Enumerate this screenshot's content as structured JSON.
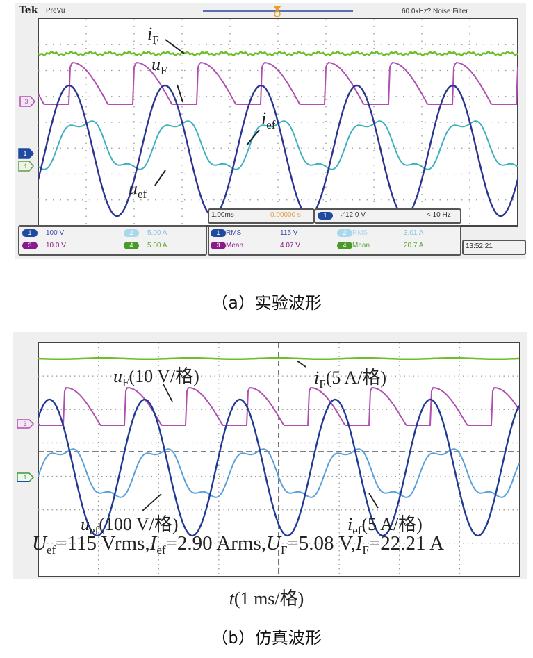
{
  "figure": {
    "panel_a": {
      "header": {
        "logo": "Tek",
        "mode": "PreVu",
        "filter": "60.0kHz? Noise Filter"
      },
      "trace_labels": {
        "iF": {
          "sym": "i",
          "sub": "F"
        },
        "uF": {
          "sym": "u",
          "sub": "F"
        },
        "ief": {
          "sym": "i",
          "sub": "ef"
        },
        "uef": {
          "sym": "u",
          "sub": "ef"
        }
      },
      "channel_markers": {
        "ch3": "3",
        "ch1": "1",
        "ch4": "4"
      },
      "channel_settings": [
        {
          "ch": "1",
          "scale": "100 V",
          "color": "#1f3a93"
        },
        {
          "ch": "3",
          "scale": "10.0 V",
          "color": "#8b1a8b"
        },
        {
          "ch": "2",
          "scale": "5.00 A",
          "color": "#9fd0e8"
        },
        {
          "ch": "4",
          "scale": "5.00 A",
          "color": "#4a9a2a"
        }
      ],
      "timebase": {
        "scale": "1.00ms",
        "position": "0.00000 s"
      },
      "trigger": {
        "ch": "1",
        "level": "12.0 V",
        "freq": "< 10 Hz"
      },
      "measurements": [
        {
          "ch": "1",
          "type": "RMS",
          "value": "115 V",
          "color": "#1f3a93"
        },
        {
          "ch": "3",
          "type": "Mean",
          "value": "4.07 V",
          "color": "#8b1a8b"
        },
        {
          "ch": "2",
          "type": "RMS",
          "value": "3.01 A",
          "color": "#7fc4e0"
        },
        {
          "ch": "4",
          "type": "Mean",
          "value": "20.7 A",
          "color": "#5aa832"
        }
      ],
      "clock": "13:52:21",
      "caption": "（a）实验波形"
    },
    "panel_b": {
      "trace_labels": {
        "uF": {
          "sym": "u",
          "sub": "F",
          "scale": "(10 V/格)"
        },
        "iF": {
          "sym": "i",
          "sub": "F",
          "scale": "(5 A/格)"
        },
        "uef": {
          "sym": "u",
          "sub": "ef",
          "scale": "(100 V/格)"
        },
        "ief": {
          "sym": "i",
          "sub": "ef",
          "scale": "(5 A/格)"
        }
      },
      "channel_markers": {
        "ch3": "3",
        "ch1": "1"
      },
      "summary": {
        "Uef": "=115 Vrms,",
        "Ief": "=2.90 Arms,",
        "UF": "=5.08 V,",
        "IF": "=22.21 A"
      },
      "xlabel": "t(1 ms/格)",
      "xlabel_sym": "t",
      "xlabel_rest": "(1 ms/格)",
      "caption": "（b）仿真波形"
    }
  },
  "chart_data": [
    {
      "type": "line",
      "title": "（a）实验波形",
      "xlabel": "time (1.00 ms/div)",
      "x_divisions": 10,
      "y_divisions": 8,
      "grid": true,
      "series": [
        {
          "name": "iF",
          "channel": 4,
          "scale": "5.00 A/div",
          "shape": "flat DC with ripple",
          "mean": "20.7 A",
          "color": "#6cbf2a"
        },
        {
          "name": "uF",
          "channel": 3,
          "scale": "10.0 V/div",
          "shape": "rectified pulse train, ~1 pulse per 0.67 div",
          "mean": "4.07 V",
          "color": "#b04fb0"
        },
        {
          "name": "ief",
          "channel": 2,
          "scale": "5.00 A/div",
          "shape": "distorted sine lagging uef",
          "rms": "3.01 A",
          "color": "#3aa8b8"
        },
        {
          "name": "uef",
          "channel": 1,
          "scale": "100 V/div",
          "shape": "sine, period ~2 div (≈500 Hz)",
          "rms": "115 V",
          "color": "#2b3590"
        }
      ]
    },
    {
      "type": "line",
      "title": "（b）仿真波形",
      "xlabel": "t(1 ms/格)",
      "x_divisions": 8,
      "y_divisions": 7,
      "grid": true,
      "series": [
        {
          "name": "iF",
          "scale": "5 A/格",
          "value": "22.21 A",
          "color": "#6cbf2a"
        },
        {
          "name": "uF",
          "scale": "10 V/格",
          "value": "5.08 V",
          "color": "#b04fb0"
        },
        {
          "name": "uef",
          "scale": "100 V/格",
          "rms": "115 Vrms",
          "color": "#1f3a93"
        },
        {
          "name": "ief",
          "scale": "5 A/格",
          "rms": "2.90 Arms",
          "color": "#5aa0d8"
        }
      ]
    }
  ]
}
